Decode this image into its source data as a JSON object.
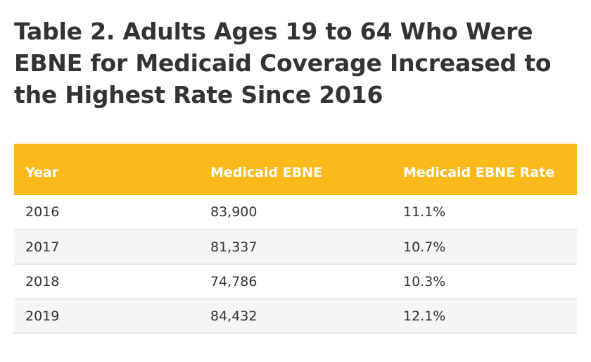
{
  "title": "Table 2. Adults Ages 19 to 64 Who Were EBNE for Medicaid Coverage Increased to the Highest Rate Since 2016",
  "colors": {
    "header_bg": "#fbb91b",
    "header_text": "#ffffff",
    "body_text": "#333333",
    "alt_row_bg": "#f5f5f5"
  },
  "table": {
    "headers": {
      "year": "Year",
      "ebne": "Medicaid EBNE",
      "rate": "Medicaid EBNE Rate"
    },
    "rows": [
      {
        "year": "2016",
        "ebne": "83,900",
        "rate": "11.1%"
      },
      {
        "year": "2017",
        "ebne": "81,337",
        "rate": "10.7%"
      },
      {
        "year": "2018",
        "ebne": "74,786",
        "rate": "10.3%"
      },
      {
        "year": "2019",
        "ebne": "84,432",
        "rate": "12.1%"
      }
    ]
  }
}
